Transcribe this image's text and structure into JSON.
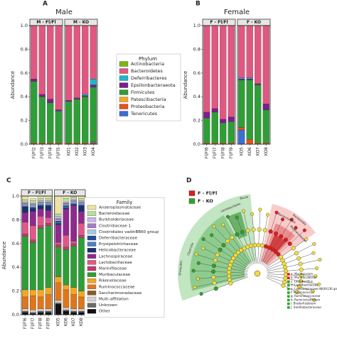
{
  "chart_data": [
    {
      "type": "stacked_bar",
      "panel_label": "A",
      "title": "Male",
      "y_label": "Abundance",
      "legend_title": "Phylum",
      "ylim": [
        0,
        1
      ],
      "yticks": [
        {
          "value": 0,
          "label": "0.0"
        },
        0.2,
        0.4,
        0.6,
        0.8,
        {
          "value": 1,
          "label": "1.0"
        }
      ],
      "facets": [
        {
          "label": "M - Fl/Fl",
          "categories": [
            "Fl/Fl2",
            "Fl/Fl3",
            "Fl/Fl4",
            "Fl/Fl5"
          ]
        },
        {
          "label": "M - KO",
          "categories": [
            "KO1",
            "KO2",
            "KO3",
            "KO4"
          ]
        }
      ],
      "series": [
        {
          "name": "Actinobacteria",
          "color": "#7cb518",
          "values": [
            0,
            0,
            0,
            0,
            0,
            0,
            0,
            0
          ]
        },
        {
          "name": "Bacteroidetes",
          "color": "#e05781",
          "values": [
            0.45,
            0.58,
            0.62,
            0.71,
            0.63,
            0.61,
            0.58,
            0.45
          ]
        },
        {
          "name": "Deferribacteres",
          "color": "#1fb5c9",
          "values": [
            0,
            0,
            0,
            0,
            0,
            0,
            0.01,
            0.05
          ]
        },
        {
          "name": "Epsilonbacteraeota",
          "color": "#7a1f8c",
          "values": [
            0.02,
            0.02,
            0.03,
            0.01,
            0.01,
            0.01,
            0.01,
            0.02
          ]
        },
        {
          "name": "Firmicutes",
          "color": "#2e9e36",
          "values": [
            0.52,
            0.39,
            0.34,
            0.27,
            0.35,
            0.37,
            0.39,
            0.46
          ]
        },
        {
          "name": "Patescibacteria",
          "color": "#f4a62a",
          "values": [
            0,
            0,
            0,
            0,
            0,
            0,
            0,
            0
          ]
        },
        {
          "name": "Proteobacteria",
          "color": "#e4521b",
          "values": [
            0.01,
            0.01,
            0.01,
            0.01,
            0.01,
            0.01,
            0.01,
            0.01
          ]
        },
        {
          "name": "Tenericutes",
          "color": "#3a6fd0",
          "values": [
            0,
            0,
            0,
            0,
            0,
            0,
            0,
            0.01
          ]
        }
      ]
    },
    {
      "type": "stacked_bar",
      "panel_label": "B",
      "title": "Female",
      "y_label": "Abundance",
      "ylim": [
        0,
        1
      ],
      "yticks": [
        {
          "value": 0,
          "label": "0.0"
        },
        0.2,
        0.4,
        0.6,
        0.8,
        {
          "value": 1,
          "label": "1.0"
        }
      ],
      "facets": [
        {
          "label": "F - Fl/Fl",
          "categories": [
            "Fl/Fl6",
            "Fl/Fl7",
            "Fl/Fl8",
            "Fl/Fl9"
          ]
        },
        {
          "label": "F - KO",
          "categories": [
            "KO5",
            "KO6",
            "KO7",
            "KO8"
          ]
        }
      ],
      "series": [
        {
          "values": [
            0,
            0,
            0,
            0,
            0,
            0,
            0,
            0
          ]
        },
        {
          "values": [
            0.73,
            0.7,
            0.79,
            0.77,
            0.44,
            0.44,
            0.49,
            0.66
          ]
        },
        {
          "values": [
            0,
            0,
            0,
            0,
            0.01,
            0.01,
            0,
            0
          ]
        },
        {
          "values": [
            0.05,
            0.03,
            0.03,
            0.04,
            0.01,
            0.01,
            0.01,
            0.05
          ]
        },
        {
          "values": [
            0.21,
            0.26,
            0.17,
            0.18,
            0.4,
            0.5,
            0.49,
            0.28
          ]
        },
        {
          "values": [
            0,
            0,
            0,
            0,
            0,
            0,
            0,
            0
          ]
        },
        {
          "values": [
            0.01,
            0.01,
            0.01,
            0.01,
            0.02,
            0.04,
            0.01,
            0.01
          ]
        },
        {
          "values": [
            0,
            0,
            0,
            0,
            0.12,
            0,
            0,
            0
          ]
        }
      ]
    },
    {
      "type": "stacked_bar",
      "panel_label": "C",
      "y_label": "Abundance",
      "legend_title": "Family",
      "ylim": [
        0,
        1
      ],
      "yticks": [
        {
          "value": 0,
          "label": "0.0"
        },
        0.2,
        0.4,
        0.6,
        0.8,
        {
          "value": 1,
          "label": "1.0"
        }
      ],
      "facets": [
        {
          "label": "F - Fl/Fl",
          "categories": [
            "Fl/Fl6",
            "Fl/Fl7",
            "Fl/Fl8",
            "Fl/Fl9"
          ]
        },
        {
          "label": "F - KO",
          "categories": [
            "KO5",
            "KO6",
            "KO7",
            "KO8"
          ]
        }
      ],
      "series": [
        {
          "name": "Anaeroplasmataceae",
          "color": "#eee3a0",
          "values": [
            0.03,
            0.02,
            0.02,
            0.02,
            0.15,
            0.02,
            0.01,
            0.02
          ]
        },
        {
          "name": "Bacteroidaceae",
          "color": "#b5df9c",
          "values": [
            0.02,
            0.02,
            0.02,
            0.02,
            0.02,
            0.03,
            0.02,
            0.02
          ]
        },
        {
          "name": "Burkholderiaceae",
          "color": "#cdb6e6",
          "values": [
            0.01,
            0.01,
            0.01,
            0.01,
            0.02,
            0.01,
            0.01,
            0.01
          ]
        },
        {
          "name": "Clostridiaceae 1",
          "color": "#a77cc4",
          "values": [
            0.01,
            0.01,
            0.01,
            0.01,
            0.01,
            0.01,
            0.01,
            0.01
          ]
        },
        {
          "name": "Clostridiales vadinBB60 group",
          "color": "#a6c9e8",
          "values": [
            0.01,
            0.01,
            0.01,
            0.01,
            0.01,
            0.01,
            0.01,
            0.01
          ]
        },
        {
          "name": "Deferribacteraceae",
          "color": "#1f4e9c",
          "values": [
            0,
            0,
            0,
            0,
            0.01,
            0.01,
            0,
            0
          ]
        },
        {
          "name": "Erysipelotrichaceae",
          "color": "#4d7fbf",
          "values": [
            0.01,
            0.01,
            0.01,
            0.01,
            0.01,
            0.01,
            0.01,
            0.01
          ]
        },
        {
          "name": "Helicobacteraceae",
          "color": "#18326e",
          "values": [
            0.05,
            0.03,
            0.03,
            0.04,
            0.01,
            0.01,
            0.01,
            0.05
          ]
        },
        {
          "name": "Lachnospiraceae",
          "color": "#8e2a8e",
          "values": [
            0.08,
            0.12,
            0.06,
            0.06,
            0.15,
            0.22,
            0.3,
            0.1
          ]
        },
        {
          "name": "Lactobacillaceae",
          "color": "#e0588a",
          "values": [
            0.1,
            0.12,
            0.08,
            0.05,
            0.02,
            0.1,
            0.02,
            0.1
          ]
        },
        {
          "name": "Marinifilaceae",
          "color": "#c23b6c",
          "values": [
            0.02,
            0.02,
            0.02,
            0.02,
            0.02,
            0.02,
            0.02,
            0.02
          ]
        },
        {
          "name": "Muribaculaceae",
          "color": "#2e9e36",
          "values": [
            0.45,
            0.4,
            0.52,
            0.52,
            0.25,
            0.3,
            0.35,
            0.45
          ]
        },
        {
          "name": "Rikenellaceae",
          "color": "#f5a623",
          "values": [
            0.06,
            0.05,
            0.06,
            0.06,
            0.05,
            0.04,
            0.06,
            0.05
          ]
        },
        {
          "name": "Ruminococcaceae",
          "color": "#e0761a",
          "values": [
            0.1,
            0.12,
            0.1,
            0.12,
            0.15,
            0.15,
            0.12,
            0.1
          ]
        },
        {
          "name": "Saccharimonadaceae",
          "color": "#8a5a2a",
          "values": [
            0,
            0,
            0,
            0,
            0,
            0,
            0,
            0
          ]
        },
        {
          "name": "Multi-affiliation",
          "color": "#d3d3d3",
          "values": [
            0.02,
            0.02,
            0.02,
            0.02,
            0.02,
            0.02,
            0.02,
            0.02
          ]
        },
        {
          "name": "Unknown",
          "color": "#6b6b6b",
          "values": [
            0.01,
            0.01,
            0.01,
            0.01,
            0.01,
            0.01,
            0.01,
            0.01
          ]
        },
        {
          "name": "Other",
          "color": "#111111",
          "values": [
            0.02,
            0.01,
            0.02,
            0.02,
            0.09,
            0.03,
            0.02,
            0.02
          ]
        }
      ]
    }
  ],
  "cladogram": {
    "panel_label": "D",
    "legend": [
      {
        "label": "F - Fl/Fl",
        "color": "#e31a1c"
      },
      {
        "label": "F - KO",
        "color": "#33a02c"
      }
    ],
    "clade_labels_ko": [
      "Bacilli",
      "Lactobacillales",
      "Clostridia",
      "Firmicutes"
    ],
    "clade_labels_flfl": [
      "Bacteroidia",
      "Bacteroidetes",
      "Muribaculaceae"
    ],
    "key": [
      {
        "label": "a: Muribaculum",
        "color": "#e31a1c"
      },
      {
        "label": "b: Muribaculaceae",
        "color": "#e31a1c"
      },
      {
        "label": "c: Lactobacillus",
        "color": "#33a02c"
      },
      {
        "label": "d: Lactobacillaceae",
        "color": "#33a02c"
      },
      {
        "label": "e: Lachnospiraceae NK4A136 group",
        "color": "#33a02c"
      },
      {
        "label": "f: Ruminococcus",
        "color": "#33a02c"
      },
      {
        "label": "g: Ruminococcaceae",
        "color": "#33a02c"
      },
      {
        "label": "h: Ruminiclostridium",
        "color": "#33a02c"
      },
      {
        "label": "i: Bradyrhizobium",
        "color": "#33a02c"
      },
      {
        "label": "j: Xanthobacteraceae",
        "color": "#33a02c"
      }
    ]
  }
}
